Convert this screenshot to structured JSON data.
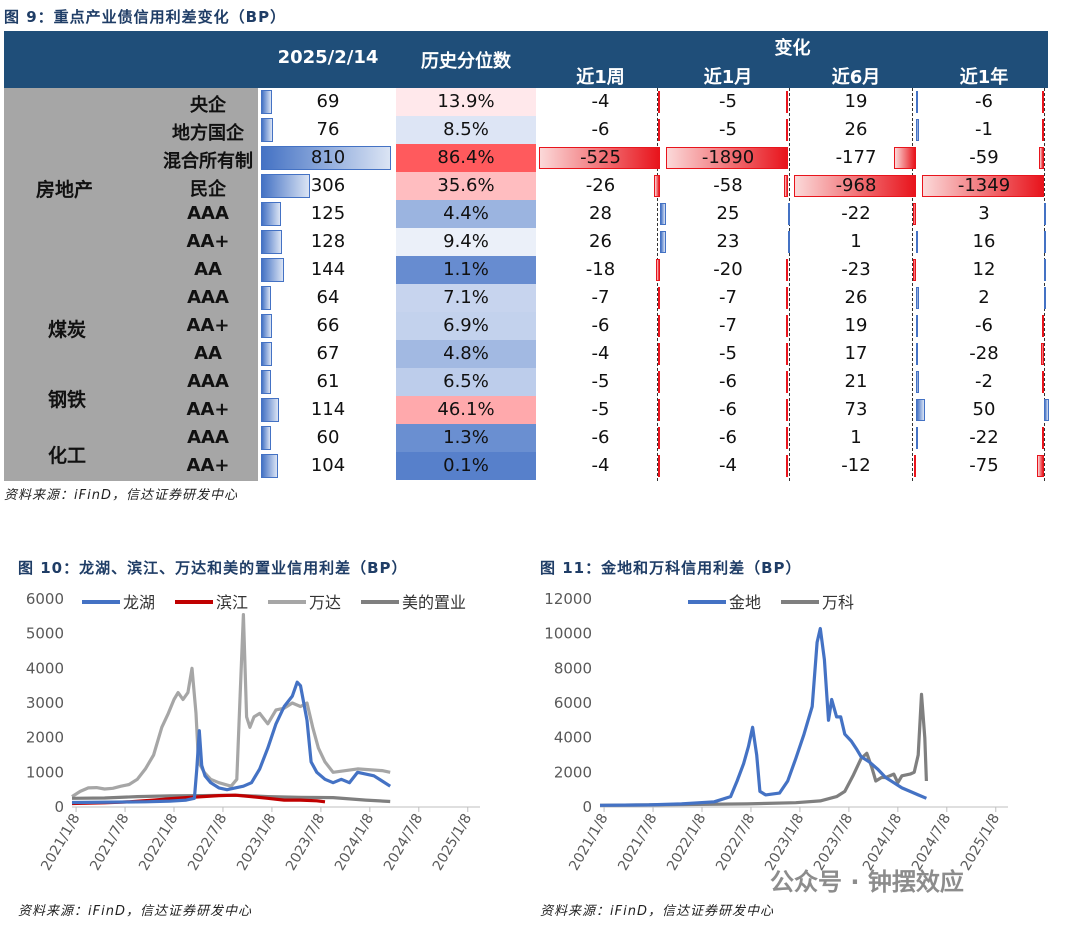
{
  "fig9": {
    "title": "图 9：重点产业债信用利差变化（BP）",
    "headers": {
      "date": "2025/2/14",
      "pct": "历史分位数",
      "change": "变化",
      "w1": "近1周",
      "m1": "近1月",
      "m6": "近6月",
      "y1": "近1年"
    },
    "categories": [
      "房地产",
      "煤炭",
      "钢铁",
      "化工"
    ],
    "rows": [
      {
        "sub": "央企",
        "val": "69",
        "pct": "13.9%",
        "w1": "-4",
        "m1": "-5",
        "m6": "19",
        "y1": "-6"
      },
      {
        "sub": "地方国企",
        "val": "76",
        "pct": "8.5%",
        "w1": "-6",
        "m1": "-5",
        "m6": "26",
        "y1": "-1"
      },
      {
        "sub": "混合所有制",
        "val": "810",
        "pct": "86.4%",
        "w1": "-525",
        "m1": "-1890",
        "m6": "-177",
        "y1": "-59"
      },
      {
        "sub": "民企",
        "val": "306",
        "pct": "35.6%",
        "w1": "-26",
        "m1": "-58",
        "m6": "-968",
        "y1": "-1349"
      },
      {
        "sub": "AAA",
        "val": "125",
        "pct": "4.4%",
        "w1": "28",
        "m1": "25",
        "m6": "-22",
        "y1": "3"
      },
      {
        "sub": "AA+",
        "val": "128",
        "pct": "9.4%",
        "w1": "26",
        "m1": "23",
        "m6": "1",
        "y1": "16"
      },
      {
        "sub": "AA",
        "val": "144",
        "pct": "1.1%",
        "w1": "-18",
        "m1": "-20",
        "m6": "-23",
        "y1": "12"
      },
      {
        "sub": "AAA",
        "val": "64",
        "pct": "7.1%",
        "w1": "-7",
        "m1": "-7",
        "m6": "26",
        "y1": "2"
      },
      {
        "sub": "AA+",
        "val": "66",
        "pct": "6.9%",
        "w1": "-6",
        "m1": "-7",
        "m6": "19",
        "y1": "-6"
      },
      {
        "sub": "AA",
        "val": "67",
        "pct": "4.8%",
        "w1": "-4",
        "m1": "-5",
        "m6": "17",
        "y1": "-28"
      },
      {
        "sub": "AAA",
        "val": "61",
        "pct": "6.5%",
        "w1": "-5",
        "m1": "-6",
        "m6": "21",
        "y1": "-2"
      },
      {
        "sub": "AA+",
        "val": "114",
        "pct": "46.1%",
        "w1": "-5",
        "m1": "-6",
        "m6": "73",
        "y1": "50"
      },
      {
        "sub": "AAA",
        "val": "60",
        "pct": "1.3%",
        "w1": "-6",
        "m1": "-6",
        "m6": "1",
        "y1": "-22"
      },
      {
        "sub": "AA+",
        "val": "104",
        "pct": "0.1%",
        "w1": "-4",
        "m1": "-4",
        "m6": "-12",
        "y1": "-75"
      }
    ],
    "source": "资料来源：iFinD，信达证券研发中心"
  },
  "fig10": {
    "title": "图 10：龙湖、滨江、万达和美的置业信用利差（BP）",
    "source": "资料来源：iFinD，信达证券研发中心"
  },
  "fig11": {
    "title": "图 11：金地和万科信用利差（BP）",
    "source": "资料来源：iFinD，信达证券研发中心"
  },
  "watermark": "公众号 · 钟摆效应",
  "chart_data": [
    {
      "type": "line",
      "title": "龙湖、滨江、万达和美的置业信用利差（BP）",
      "ylim": [
        0,
        6000
      ],
      "yticks": [
        "0",
        "1000",
        "2000",
        "3000",
        "4000",
        "5000",
        "6000"
      ],
      "xticks": [
        "2021/1/8",
        "2021/7/8",
        "2022/1/8",
        "2022/7/8",
        "2023/1/8",
        "2023/7/8",
        "2024/1/8",
        "2024/7/8",
        "2025/1/8"
      ],
      "xrange": [
        0,
        50
      ],
      "series": [
        {
          "name": "万达",
          "color": "#a6a6a6",
          "points": [
            [
              0,
              300
            ],
            [
              1,
              450
            ],
            [
              2,
              550
            ],
            [
              3,
              560
            ],
            [
              4,
              520
            ],
            [
              5,
              540
            ],
            [
              6,
              600
            ],
            [
              7,
              650
            ],
            [
              8,
              800
            ],
            [
              9,
              1100
            ],
            [
              10,
              1500
            ],
            [
              11,
              2300
            ],
            [
              11.8,
              2700
            ],
            [
              12.5,
              3100
            ],
            [
              13,
              3300
            ],
            [
              13.6,
              3100
            ],
            [
              14.2,
              3300
            ],
            [
              14.7,
              4000
            ],
            [
              15.2,
              2700
            ],
            [
              15.5,
              1300
            ],
            [
              16.2,
              1000
            ],
            [
              17,
              800
            ],
            [
              18,
              700
            ],
            [
              19.5,
              600
            ],
            [
              20.2,
              800
            ],
            [
              20.6,
              3200
            ],
            [
              21,
              5550
            ],
            [
              21.4,
              2600
            ],
            [
              21.8,
              2300
            ],
            [
              22.3,
              2600
            ],
            [
              23,
              2700
            ],
            [
              24,
              2400
            ],
            [
              25,
              2800
            ],
            [
              26,
              2850
            ],
            [
              27,
              3000
            ],
            [
              28,
              2900
            ],
            [
              28.8,
              3000
            ],
            [
              29.5,
              2300
            ],
            [
              30.2,
              1700
            ],
            [
              31,
              1300
            ],
            [
              32,
              1000
            ],
            [
              35,
              1100
            ],
            [
              38,
              1050
            ],
            [
              39,
              1000
            ]
          ]
        },
        {
          "name": "美的置业",
          "color": "#7f7f7f",
          "points": [
            [
              0,
              250
            ],
            [
              4,
              260
            ],
            [
              8,
              300
            ],
            [
              12,
              320
            ],
            [
              16,
              330
            ],
            [
              20,
              340
            ],
            [
              24,
              300
            ],
            [
              28,
              280
            ],
            [
              32,
              270
            ],
            [
              36,
              200
            ],
            [
              39,
              160
            ]
          ]
        },
        {
          "name": "滨江",
          "color": "#c00000",
          "points": [
            [
              0,
              100
            ],
            [
              4,
              120
            ],
            [
              7,
              150
            ],
            [
              10,
              200
            ],
            [
              12,
              240
            ],
            [
              14,
              270
            ],
            [
              16,
              300
            ],
            [
              18,
              330
            ],
            [
              20,
              340
            ],
            [
              22,
              300
            ],
            [
              24,
              250
            ],
            [
              26,
              200
            ],
            [
              28,
              200
            ],
            [
              30,
              180
            ],
            [
              31,
              150
            ]
          ]
        },
        {
          "name": "龙湖",
          "color": "#4472c4",
          "points": [
            [
              0,
              130
            ],
            [
              5,
              140
            ],
            [
              9,
              150
            ],
            [
              12,
              170
            ],
            [
              14,
              200
            ],
            [
              15,
              250
            ],
            [
              15.3,
              1100
            ],
            [
              15.6,
              2200
            ],
            [
              15.9,
              1200
            ],
            [
              16.3,
              900
            ],
            [
              17,
              700
            ],
            [
              18,
              550
            ],
            [
              19,
              500
            ],
            [
              20,
              550
            ],
            [
              21,
              600
            ],
            [
              22,
              700
            ],
            [
              23,
              1100
            ],
            [
              24,
              1700
            ],
            [
              25,
              2400
            ],
            [
              26,
              2900
            ],
            [
              27,
              3200
            ],
            [
              27.6,
              3600
            ],
            [
              28,
              3500
            ],
            [
              28.8,
              2500
            ],
            [
              29.3,
              1300
            ],
            [
              30,
              1000
            ],
            [
              31,
              800
            ],
            [
              32,
              700
            ],
            [
              33,
              800
            ],
            [
              34,
              700
            ],
            [
              35,
              1000
            ],
            [
              37,
              900
            ],
            [
              38,
              750
            ],
            [
              39,
              600
            ]
          ]
        }
      ]
    },
    {
      "type": "line",
      "title": "金地和万科信用利差（BP）",
      "ylim": [
        0,
        12000
      ],
      "yticks": [
        "0",
        "2000",
        "4000",
        "6000",
        "8000",
        "10000",
        "12000"
      ],
      "xticks": [
        "2021/1/8",
        "2021/7/8",
        "2022/1/8",
        "2022/7/8",
        "2023/1/8",
        "2023/7/8",
        "2024/1/8",
        "2024/7/8",
        "2025/1/8"
      ],
      "xrange": [
        0,
        50
      ],
      "series": [
        {
          "name": "万科",
          "color": "#7f7f7f",
          "points": [
            [
              0,
              100
            ],
            [
              6,
              120
            ],
            [
              12,
              150
            ],
            [
              18,
              180
            ],
            [
              24,
              250
            ],
            [
              27,
              350
            ],
            [
              29,
              600
            ],
            [
              30,
              900
            ],
            [
              31,
              1800
            ],
            [
              32,
              2800
            ],
            [
              32.7,
              3100
            ],
            [
              33.3,
              2300
            ],
            [
              33.8,
              1500
            ],
            [
              34.5,
              1700
            ],
            [
              35,
              1700
            ],
            [
              36,
              1900
            ],
            [
              36.5,
              1400
            ],
            [
              37,
              1800
            ],
            [
              38,
              1900
            ],
            [
              38.5,
              2000
            ],
            [
              39,
              3000
            ],
            [
              39.4,
              6500
            ],
            [
              39.8,
              4000
            ],
            [
              40,
              1500
            ]
          ]
        },
        {
          "name": "金地",
          "color": "#4472c4",
          "points": [
            [
              0,
              100
            ],
            [
              6,
              120
            ],
            [
              10,
              180
            ],
            [
              14,
              300
            ],
            [
              16,
              600
            ],
            [
              16.8,
              1500
            ],
            [
              17.6,
              2500
            ],
            [
              18.2,
              3500
            ],
            [
              18.7,
              4600
            ],
            [
              19.2,
              3000
            ],
            [
              19.6,
              900
            ],
            [
              20.3,
              700
            ],
            [
              22,
              800
            ],
            [
              23,
              1500
            ],
            [
              24,
              2800
            ],
            [
              25,
              4200
            ],
            [
              26,
              5800
            ],
            [
              26.6,
              9500
            ],
            [
              27,
              10300
            ],
            [
              27.5,
              8500
            ],
            [
              28,
              5000
            ],
            [
              28.4,
              6200
            ],
            [
              29,
              5200
            ],
            [
              29.5,
              5200
            ],
            [
              30,
              4200
            ],
            [
              30.8,
              3800
            ],
            [
              31.5,
              3300
            ],
            [
              32,
              2900
            ],
            [
              33,
              2600
            ],
            [
              34,
              2200
            ],
            [
              35,
              1700
            ],
            [
              36,
              1400
            ],
            [
              37,
              1100
            ],
            [
              38,
              900
            ],
            [
              39,
              700
            ],
            [
              40,
              500
            ]
          ]
        }
      ]
    }
  ]
}
